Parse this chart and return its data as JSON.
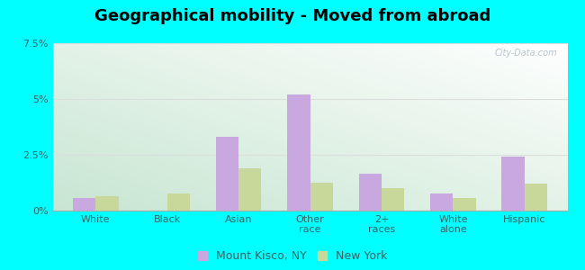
{
  "title": "Geographical mobility - Moved from abroad",
  "categories": [
    "White",
    "Black",
    "Asian",
    "Other\nrace",
    "2+\nraces",
    "White\nalone",
    "Hispanic"
  ],
  "mount_kisco": [
    0.55,
    0.0,
    3.3,
    5.2,
    1.65,
    0.75,
    2.4
  ],
  "new_york": [
    0.65,
    0.75,
    1.9,
    1.25,
    1.0,
    0.55,
    1.2
  ],
  "bar_color_mk": "#c9a8e0",
  "bar_color_ny": "#c8d89a",
  "bar_width": 0.32,
  "ylim": [
    0,
    7.5
  ],
  "yticks": [
    0,
    2.5,
    5.0,
    7.5
  ],
  "yticklabels": [
    "0%",
    "2.5%",
    "5%",
    "7.5%"
  ],
  "bg_color_topleft": "#c8f0d0",
  "bg_color_topright": "#e8f0f8",
  "bg_color_bottomright": "#ffffff",
  "outer_bg": "#00FFFF",
  "legend_mk": "Mount Kisco, NY",
  "legend_ny": "New York",
  "title_fontsize": 13,
  "tick_fontsize": 8,
  "legend_fontsize": 9
}
